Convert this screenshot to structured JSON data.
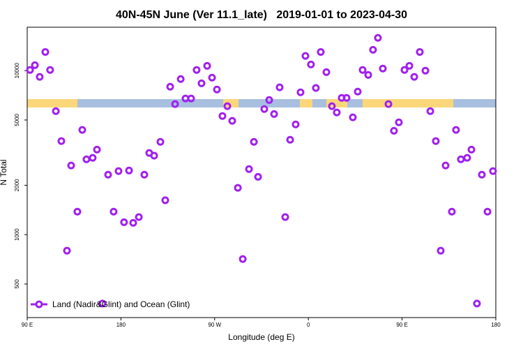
{
  "chart_data": {
    "type": "scatter",
    "title": "40N-45N June (Ver 11.1_late)   2019-01-01 to 2023-04-30",
    "x_label": "Longitude (deg E)",
    "y_label": "N Total",
    "yscale": "log",
    "legend_position": "lower left",
    "xlim": [
      90,
      540
    ],
    "ylim": [
      312,
      18400
    ],
    "xticks": [
      {
        "value": 90,
        "label": "90 E"
      },
      180,
      {
        "value": 270,
        "label": "90 W"
      },
      {
        "value": 360,
        "label": "0"
      },
      {
        "value": 450,
        "label": "90 E"
      },
      {
        "value": 540,
        "label": "180"
      }
    ],
    "yticks": [
      500,
      1000,
      2000,
      5000,
      10000
    ],
    "x": [
      92.7,
      97.4,
      102,
      107.4,
      112,
      117.5,
      122.8,
      128.2,
      132.2,
      138.2,
      142.9,
      146.9,
      152.9,
      157,
      162.3,
      167.7,
      173,
      177.7,
      183,
      187.8,
      191.8,
      197.2,
      202.5,
      207.2,
      211.9,
      217.9,
      222.6,
      227.3,
      232,
      237.4,
      242,
      247.4,
      252.7,
      257.4,
      262.8,
      267.5,
      272.2,
      277.5,
      282.2,
      286.9,
      292.3,
      297,
      303,
      307.7,
      311.7,
      317.7,
      322.4,
      327.1,
      332.4,
      337.8,
      342.5,
      347.8,
      352.5,
      357.2,
      362.5,
      367.2,
      371.9,
      377.3,
      382.6,
      387.3,
      392,
      396.7,
      402.7,
      407.4,
      412.1,
      417.5,
      422.1,
      426.8,
      431.5,
      436.9,
      442.2,
      446.9,
      452.3,
      457,
      461.7,
      467,
      472.4,
      477.1,
      482.4,
      487.1,
      491.8,
      497.8,
      501.8,
      506.5,
      512.5,
      516.6,
      521.9,
      526.6,
      532,
      537.3
    ],
    "series": [
      {
        "name": "Land (Nadir&Glint) and Ocean (Glint)",
        "color": "#a020f0",
        "values": [
          10100,
          10800,
          9160,
          13000,
          10100,
          5660,
          3720,
          798,
          2640,
          1380,
          4350,
          2880,
          2940,
          3300,
          380,
          2320,
          1380,
          2440,
          1190,
          2460,
          1180,
          1280,
          2320,
          3150,
          3030,
          3680,
          1620,
          7980,
          6250,
          8890,
          6760,
          6760,
          10100,
          8370,
          10700,
          9060,
          7670,
          5290,
          6070,
          4940,
          1930,
          710,
          2510,
          3680,
          2250,
          5830,
          6620,
          5440,
          7910,
          1280,
          3790,
          4700,
          7380,
          12300,
          10900,
          7840,
          13000,
          9790,
          6070,
          5560,
          6820,
          6820,
          5190,
          7450,
          10100,
          9420,
          13400,
          15850,
          10300,
          6250,
          4300,
          4840,
          10100,
          10700,
          9160,
          13000,
          10000,
          5660,
          3720,
          798,
          2640,
          1380,
          4350,
          2880,
          2940,
          3300,
          380,
          2320,
          1380,
          2440
        ]
      }
    ]
  }
}
